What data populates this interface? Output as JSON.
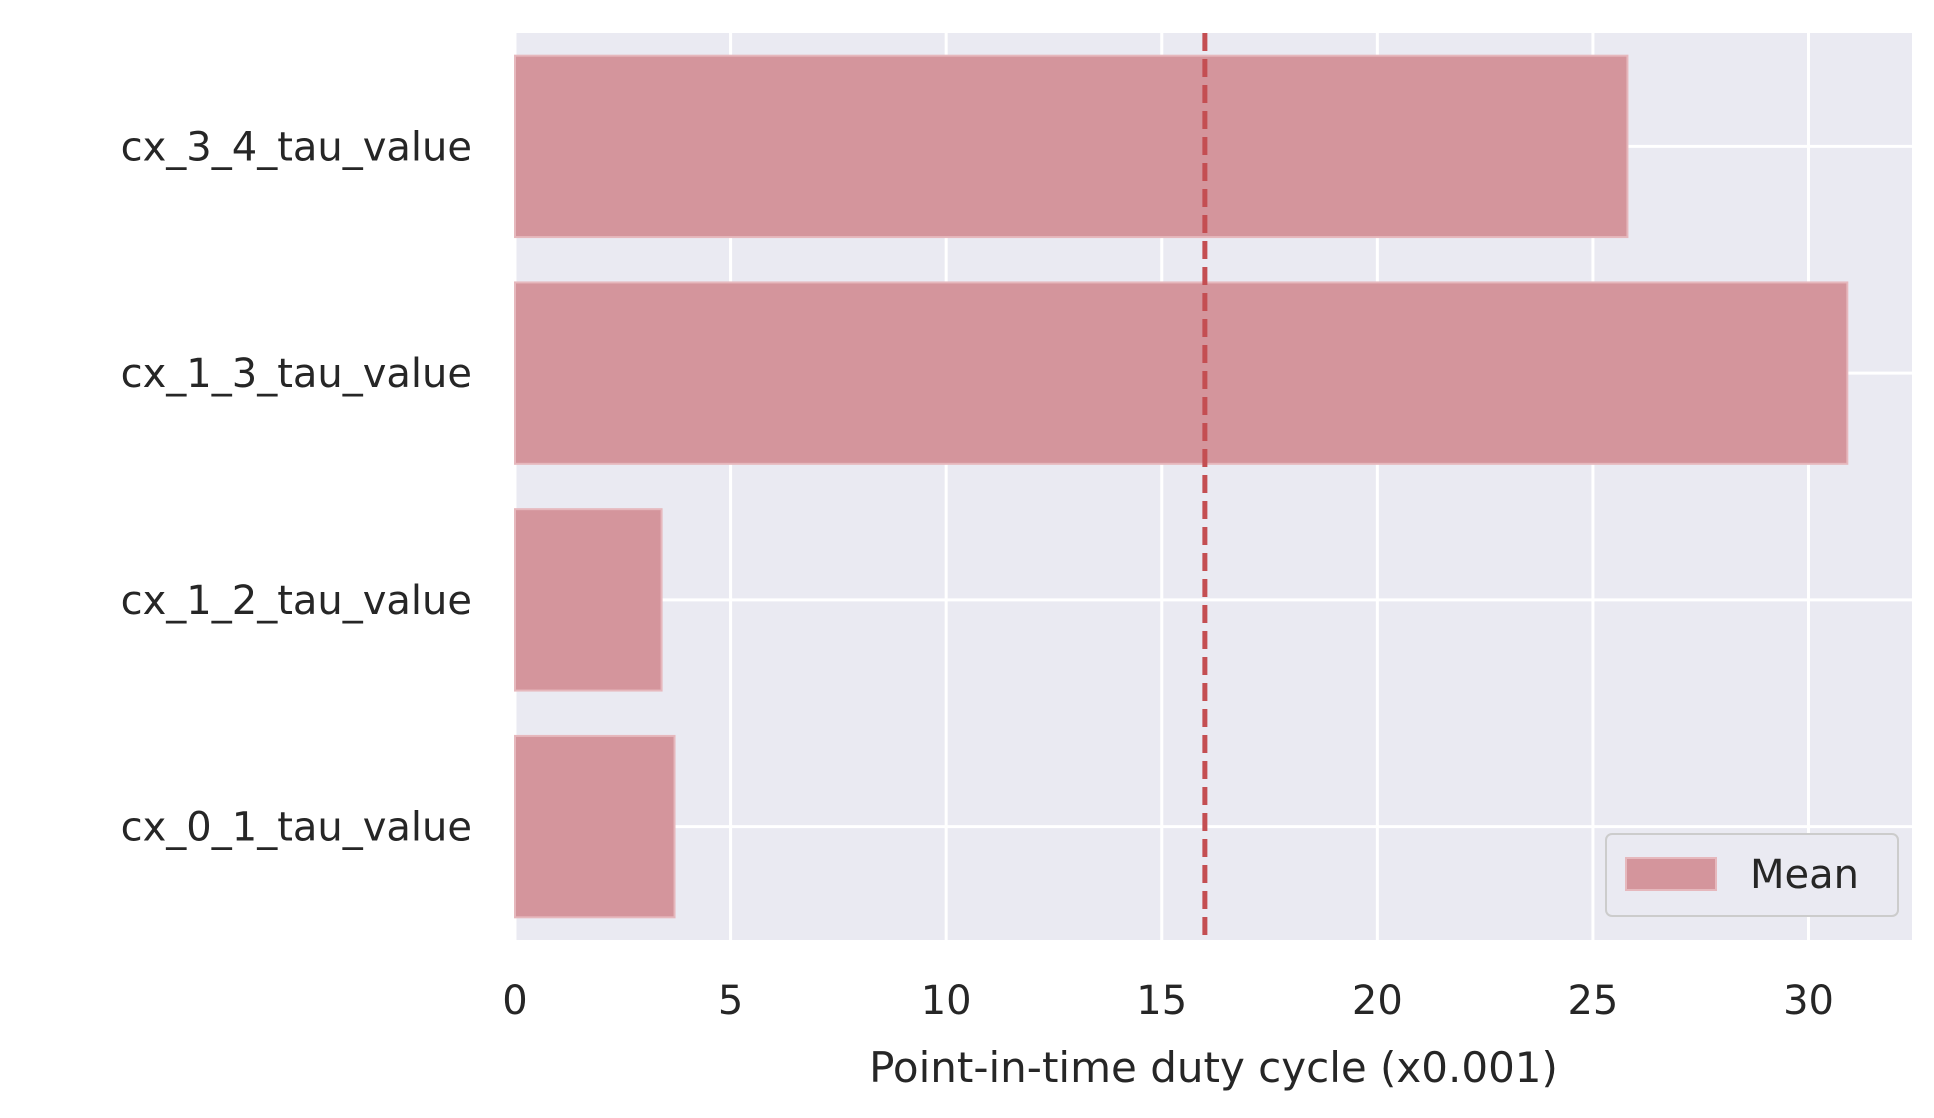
{
  "chart_data": {
    "type": "bar",
    "orientation": "horizontal",
    "categories": [
      "cx_3_4_tau_value",
      "cx_1_3_tau_value",
      "cx_1_2_tau_value",
      "cx_0_1_tau_value"
    ],
    "series": [
      {
        "name": "Mean",
        "values": [
          25.8,
          30.9,
          3.4,
          3.7
        ]
      }
    ],
    "reference_line": {
      "value": 16.0,
      "style": "dashed"
    },
    "xlabel": "Point-in-time duty cycle  (x0.001)",
    "ylabel": "",
    "xlim": [
      0,
      32.4
    ],
    "xticks": [
      0,
      5,
      10,
      15,
      20,
      25,
      30
    ],
    "grid": true,
    "legend_position": "lower-right",
    "colors": {
      "bar": "#d4959c",
      "bar_edge": "#e6b8bd",
      "reference_line": "#c44e52",
      "plot_background": "#eaeaf2",
      "grid": "#ffffff",
      "text": "#262626"
    }
  }
}
